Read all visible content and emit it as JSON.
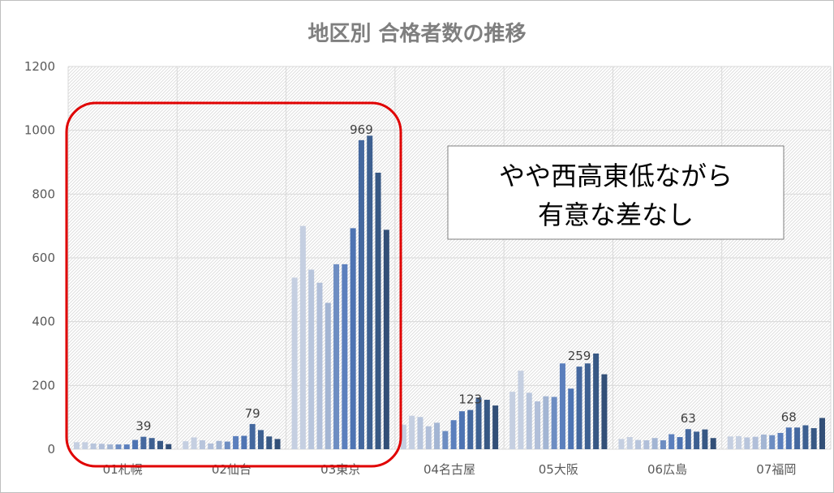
{
  "chart_data": {
    "type": "bar",
    "title": "地区別 合格者数の推移",
    "xlabel": "",
    "ylabel": "",
    "ylim": [
      0,
      1200
    ],
    "yticks": [
      0,
      200,
      400,
      600,
      800,
      1000,
      1200
    ],
    "grid": true,
    "legend": "none",
    "categories": [
      "01札幌",
      "02仙台",
      "03東京",
      "04名古屋",
      "05大阪",
      "06広島",
      "07福岡"
    ],
    "values": [
      [
        22,
        22,
        18,
        17,
        15,
        15,
        15,
        29,
        39,
        35,
        26,
        16
      ],
      [
        25,
        37,
        28,
        18,
        26,
        24,
        41,
        42,
        79,
        60,
        40,
        32
      ],
      [
        538,
        700,
        563,
        522,
        459,
        580,
        580,
        693,
        969,
        983,
        867,
        688
      ],
      [
        77,
        105,
        101,
        72,
        83,
        57,
        91,
        119,
        123,
        162,
        155,
        137
      ],
      [
        180,
        246,
        177,
        150,
        166,
        164,
        269,
        190,
        259,
        269,
        300,
        235
      ],
      [
        32,
        38,
        29,
        28,
        35,
        28,
        47,
        38,
        63,
        55,
        62,
        35
      ],
      [
        40,
        41,
        37,
        39,
        46,
        44,
        51,
        68,
        68,
        75,
        66,
        98
      ]
    ],
    "data_labels": [
      {
        "category": "01札幌",
        "text": "39"
      },
      {
        "category": "02仙台",
        "text": "79"
      },
      {
        "category": "03東京",
        "text": "969"
      },
      {
        "category": "04名古屋",
        "text": "123"
      },
      {
        "category": "05大阪",
        "text": "259"
      },
      {
        "category": "06広島",
        "text": "63"
      },
      {
        "category": "07福岡",
        "text": "68"
      }
    ],
    "bar_colors": [
      "#c5cfe1",
      "#c5cfe1",
      "#b8c5dc",
      "#b1bfd9",
      "#a3b5d3",
      "#6d8dc2",
      "#5b7fbd",
      "#4e74b3",
      "#44689f",
      "#3d6091",
      "#375884",
      "#324f77"
    ]
  },
  "annotations": {
    "callout_lines": [
      "やや西高東低ながら",
      "有意な差なし"
    ],
    "highlight_color": "#e00000"
  }
}
